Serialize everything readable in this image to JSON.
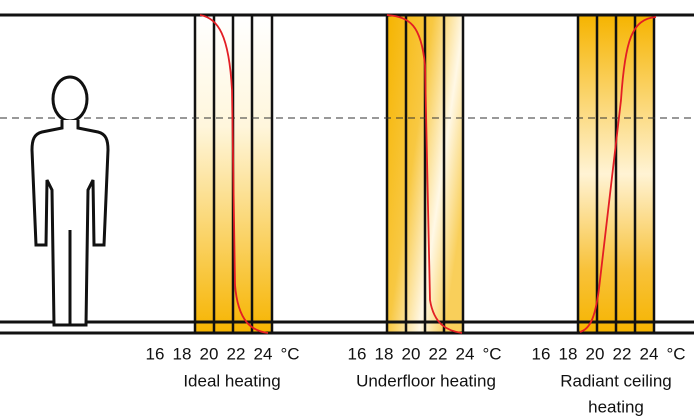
{
  "panels": [
    {
      "ticks": [
        "16",
        "18",
        "20",
        "22",
        "24",
        "°C"
      ],
      "caption": [
        "Ideal heating"
      ]
    },
    {
      "ticks": [
        "16",
        "18",
        "20",
        "22",
        "24",
        "°C"
      ],
      "caption": [
        "Underfloor heating"
      ]
    },
    {
      "ticks": [
        "16",
        "18",
        "20",
        "22",
        "24",
        "°C"
      ],
      "caption": [
        "Radiant ceiling",
        "heating"
      ]
    }
  ]
}
